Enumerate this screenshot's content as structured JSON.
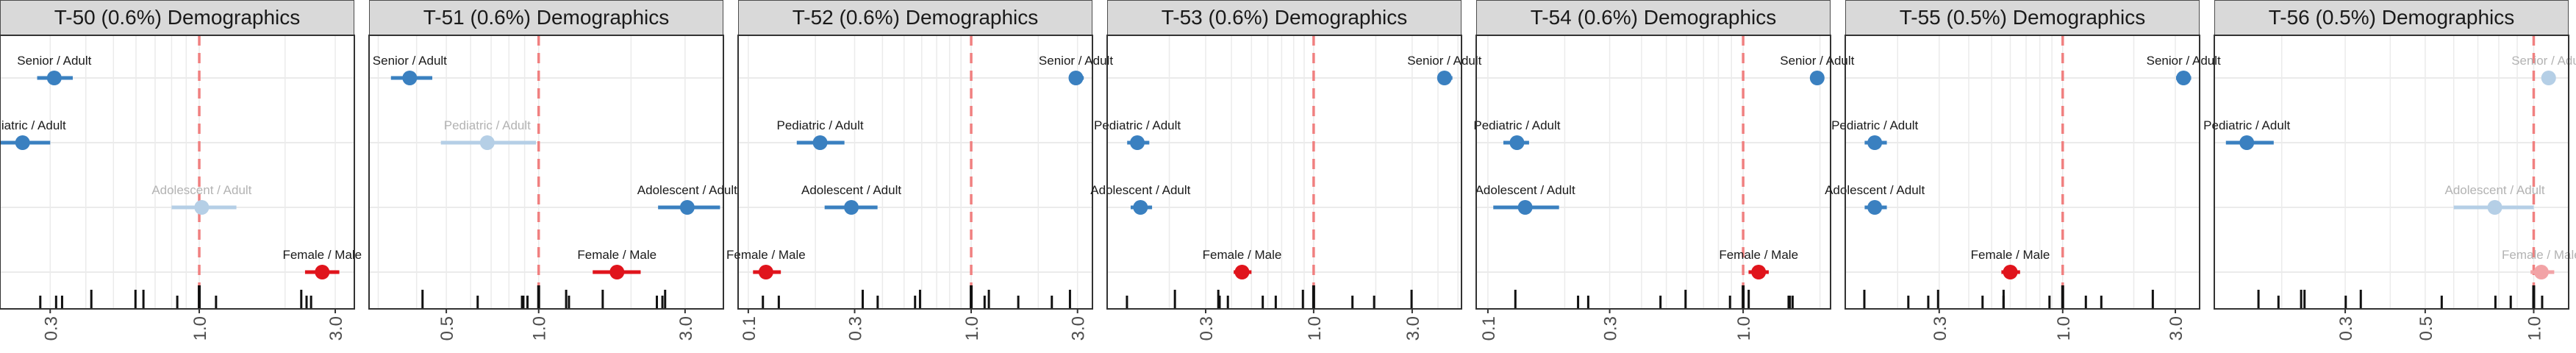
{
  "colors": {
    "blue": "#3a80c0",
    "blue_faded": "#b5cfe6",
    "red": "#e0141c",
    "red_faded": "#f2a3a6",
    "reference_line": "#f08080",
    "grid": "#ebebeb",
    "strip_bg": "#d9d9d9",
    "strip_border": "#4d4d4d"
  },
  "chart_data": [
    {
      "type": "scatter",
      "title": "T-50 (0.6%) Demographics",
      "x_scale": "log",
      "xlim": [
        0.2,
        3.5
      ],
      "reference_x": 1.0,
      "ticks": [
        "0.3",
        "1.0",
        "3.0"
      ],
      "points": [
        {
          "label": "Senior / Adult",
          "x": 0.31,
          "lo": 0.27,
          "hi": 0.36,
          "color": "blue",
          "faded": false
        },
        {
          "label": "Pediatric / Adult",
          "x": 0.24,
          "lo": 0.2,
          "hi": 0.3,
          "color": "blue",
          "faded": false
        },
        {
          "label": "Adolescent / Adult",
          "x": 1.02,
          "lo": 0.8,
          "hi": 1.35,
          "color": "blue",
          "faded": true
        },
        {
          "label": "Female / Male",
          "x": 2.7,
          "lo": 2.35,
          "hi": 3.1,
          "color": "red",
          "faded": false
        }
      ]
    },
    {
      "type": "scatter",
      "title": "T-51 (0.6%) Demographics",
      "x_scale": "log",
      "xlim": [
        0.28,
        4.0
      ],
      "reference_x": 1.0,
      "ticks": [
        "0.5",
        "1.0",
        "3.0"
      ],
      "points": [
        {
          "label": "Senior / Adult",
          "x": 0.38,
          "lo": 0.33,
          "hi": 0.45,
          "color": "blue",
          "faded": false
        },
        {
          "label": "Pediatric / Adult",
          "x": 0.68,
          "lo": 0.48,
          "hi": 0.98,
          "color": "blue",
          "faded": true
        },
        {
          "label": "Adolescent / Adult",
          "x": 3.05,
          "lo": 2.45,
          "hi": 3.9,
          "color": "blue",
          "faded": false
        },
        {
          "label": "Female / Male",
          "x": 1.8,
          "lo": 1.5,
          "hi": 2.15,
          "color": "red",
          "faded": false
        }
      ]
    },
    {
      "type": "scatter",
      "title": "T-52 (0.6%) Demographics",
      "x_scale": "log",
      "xlim": [
        0.09,
        3.5
      ],
      "reference_x": 1.0,
      "ticks": [
        "0.1",
        "0.3",
        "1.0",
        "3.0"
      ],
      "points": [
        {
          "label": "Senior / Adult",
          "x": 2.95,
          "lo": 2.75,
          "hi": 3.2,
          "color": "blue",
          "faded": false
        },
        {
          "label": "Pediatric / Adult",
          "x": 0.21,
          "lo": 0.165,
          "hi": 0.27,
          "color": "blue",
          "faded": false
        },
        {
          "label": "Adolescent / Adult",
          "x": 0.29,
          "lo": 0.22,
          "hi": 0.38,
          "color": "blue",
          "faded": false
        },
        {
          "label": "Female / Male",
          "x": 0.12,
          "lo": 0.105,
          "hi": 0.14,
          "color": "red",
          "faded": false
        }
      ]
    },
    {
      "type": "scatter",
      "title": "T-53 (0.6%) Demographics",
      "x_scale": "log",
      "xlim": [
        0.1,
        5.2
      ],
      "reference_x": 1.0,
      "ticks": [
        "0.3",
        "1.0",
        "3.0"
      ],
      "points": [
        {
          "label": "Senior / Adult",
          "x": 4.3,
          "lo": 4.0,
          "hi": 4.7,
          "color": "blue",
          "faded": false
        },
        {
          "label": "Pediatric / Adult",
          "x": 0.14,
          "lo": 0.125,
          "hi": 0.16,
          "color": "blue",
          "faded": false
        },
        {
          "label": "Adolescent / Adult",
          "x": 0.145,
          "lo": 0.13,
          "hi": 0.165,
          "color": "blue",
          "faded": false
        },
        {
          "label": "Female / Male",
          "x": 0.45,
          "lo": 0.41,
          "hi": 0.5,
          "color": "red",
          "faded": false
        }
      ]
    },
    {
      "type": "scatter",
      "title": "T-54 (0.6%) Demographics",
      "x_scale": "log",
      "xlim": [
        0.09,
        2.2
      ],
      "reference_x": 1.0,
      "ticks": [
        "0.1",
        "0.3",
        "1.0"
      ],
      "points": [
        {
          "label": "Senior / Adult",
          "x": 1.95,
          "lo": 1.85,
          "hi": 2.08,
          "color": "blue",
          "faded": false
        },
        {
          "label": "Pediatric / Adult",
          "x": 0.13,
          "lo": 0.115,
          "hi": 0.145,
          "color": "blue",
          "faded": false
        },
        {
          "label": "Adolescent / Adult",
          "x": 0.14,
          "lo": 0.105,
          "hi": 0.19,
          "color": "blue",
          "faded": false
        },
        {
          "label": "Female / Male",
          "x": 1.15,
          "lo": 1.05,
          "hi": 1.26,
          "color": "red",
          "faded": false
        }
      ]
    },
    {
      "type": "scatter",
      "title": "T-55 (0.5%) Demographics",
      "x_scale": "log",
      "xlim": [
        0.12,
        3.8
      ],
      "reference_x": 1.0,
      "ticks": [
        "0.3",
        "1.0",
        "3.0"
      ],
      "points": [
        {
          "label": "Senior / Adult",
          "x": 3.25,
          "lo": 3.02,
          "hi": 3.5,
          "color": "blue",
          "faded": false
        },
        {
          "label": "Pediatric / Adult",
          "x": 0.16,
          "lo": 0.145,
          "hi": 0.18,
          "color": "blue",
          "faded": false
        },
        {
          "label": "Adolescent / Adult",
          "x": 0.16,
          "lo": 0.145,
          "hi": 0.18,
          "color": "blue",
          "faded": false
        },
        {
          "label": "Female / Male",
          "x": 0.6,
          "lo": 0.55,
          "hi": 0.66,
          "color": "red",
          "faded": false
        }
      ]
    },
    {
      "type": "scatter",
      "title": "T-56 (0.5%) Demographics",
      "x_scale": "log",
      "xlim": [
        0.13,
        1.25
      ],
      "reference_x": 1.0,
      "ticks": [
        "0.3",
        "0.5",
        "1.0"
      ],
      "points": [
        {
          "label": "Senior / Adult",
          "x": 1.1,
          "lo": 1.05,
          "hi": 1.15,
          "color": "blue",
          "faded": true
        },
        {
          "label": "Pediatric / Adult",
          "x": 0.16,
          "lo": 0.14,
          "hi": 0.19,
          "color": "blue",
          "faded": false
        },
        {
          "label": "Adolescent / Adult",
          "x": 0.78,
          "lo": 0.6,
          "hi": 1.0,
          "color": "blue",
          "faded": true
        },
        {
          "label": "Female / Male",
          "x": 1.05,
          "lo": 0.98,
          "hi": 1.14,
          "color": "red",
          "faded": true
        }
      ]
    }
  ]
}
